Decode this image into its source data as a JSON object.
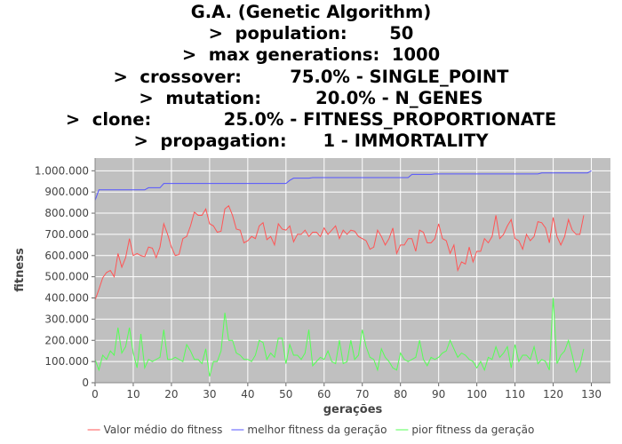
{
  "header": {
    "title_lines": [
      "G.A. (Genetic Algorithm)",
      ">  population:       50",
      ">  max generations:  1000",
      ">  crossover:        75.0% - SINGLE_POINT",
      ">  mutation:         20.0% - N_GENES",
      ">  clone:            25.0% - FITNESS_PROPORTIONATE",
      ">  propagation:      1 - IMMORTALITY"
    ]
  },
  "chart_data": {
    "type": "line",
    "xlabel": "gerações",
    "ylabel": "fitness",
    "xlim": [
      0,
      135
    ],
    "ylim": [
      0,
      1060000
    ],
    "x_ticks": [
      0,
      10,
      20,
      30,
      40,
      50,
      60,
      70,
      80,
      90,
      100,
      110,
      120,
      130
    ],
    "y_ticks": [
      0,
      100000,
      200000,
      300000,
      400000,
      500000,
      600000,
      700000,
      800000,
      900000,
      1000000
    ],
    "y_tick_labels": [
      "0",
      "100.000",
      "200.000",
      "300.000",
      "400.000",
      "500.000",
      "600.000",
      "700.000",
      "800.000",
      "900.000",
      "1.000.000"
    ],
    "grid": true,
    "legend_position": "bottom",
    "background_color": "#c0c0c0",
    "grid_color": "#ffffff",
    "series": [
      {
        "name": "Valor médio do fitness",
        "color": "#ff5555",
        "values": [
          390000,
          440000,
          495000,
          520000,
          530000,
          500000,
          610000,
          545000,
          590000,
          680000,
          600000,
          610000,
          600000,
          595000,
          640000,
          635000,
          590000,
          640000,
          750000,
          700000,
          640000,
          600000,
          605000,
          680000,
          690000,
          740000,
          805000,
          790000,
          790000,
          820000,
          750000,
          740000,
          710000,
          715000,
          820000,
          835000,
          790000,
          725000,
          720000,
          660000,
          670000,
          690000,
          680000,
          740000,
          755000,
          675000,
          690000,
          650000,
          750000,
          725000,
          720000,
          740000,
          665000,
          700000,
          700000,
          720000,
          690000,
          710000,
          710000,
          690000,
          730000,
          700000,
          720000,
          740000,
          680000,
          720000,
          700000,
          720000,
          715000,
          690000,
          680000,
          670000,
          630000,
          640000,
          720000,
          690000,
          650000,
          680000,
          730000,
          610000,
          650000,
          650000,
          680000,
          680000,
          620000,
          720000,
          710000,
          660000,
          660000,
          680000,
          750000,
          680000,
          670000,
          610000,
          650000,
          530000,
          570000,
          560000,
          640000,
          570000,
          620000,
          620000,
          680000,
          660000,
          690000,
          790000,
          680000,
          700000,
          740000,
          770000,
          680000,
          670000,
          630000,
          700000,
          670000,
          690000,
          760000,
          755000,
          730000,
          660000,
          780000,
          690000,
          650000,
          690000,
          770000,
          720000,
          700000,
          700000,
          790000
        ]
      },
      {
        "name": "melhor fitness da geração",
        "color": "#5555ff",
        "values": [
          860000,
          910000,
          910000,
          910000,
          910000,
          910000,
          910000,
          910000,
          910000,
          910000,
          910000,
          910000,
          910000,
          910000,
          920000,
          920000,
          920000,
          920000,
          940000,
          940000,
          940000,
          940000,
          940000,
          940000,
          940000,
          940000,
          940000,
          940000,
          940000,
          940000,
          940000,
          940000,
          940000,
          940000,
          940000,
          940000,
          940000,
          940000,
          940000,
          940000,
          940000,
          940000,
          940000,
          940000,
          940000,
          940000,
          940000,
          940000,
          940000,
          940000,
          940000,
          955000,
          965000,
          965000,
          965000,
          965000,
          965000,
          968000,
          968000,
          968000,
          968000,
          968000,
          968000,
          968000,
          968000,
          968000,
          968000,
          968000,
          968000,
          968000,
          968000,
          968000,
          968000,
          968000,
          968000,
          968000,
          968000,
          968000,
          968000,
          968000,
          968000,
          968000,
          968000,
          983000,
          983000,
          983000,
          983000,
          983000,
          983000,
          985000,
          985000,
          985000,
          985000,
          985000,
          985000,
          985000,
          985000,
          985000,
          985000,
          985000,
          985000,
          985000,
          985000,
          985000,
          985000,
          985000,
          985000,
          985000,
          985000,
          985000,
          985000,
          985000,
          985000,
          985000,
          985000,
          985000,
          985000,
          990000,
          990000,
          990000,
          990000,
          990000,
          990000,
          990000,
          990000,
          990000,
          990000,
          990000,
          990000,
          990000,
          1000000
        ]
      },
      {
        "name": "pior fitness da geração",
        "color": "#55ff55",
        "values": [
          110000,
          60000,
          130000,
          110000,
          150000,
          130000,
          260000,
          140000,
          170000,
          260000,
          140000,
          70000,
          230000,
          70000,
          110000,
          100000,
          110000,
          120000,
          250000,
          110000,
          110000,
          120000,
          110000,
          100000,
          180000,
          150000,
          110000,
          110000,
          90000,
          160000,
          30000,
          100000,
          100000,
          150000,
          330000,
          200000,
          200000,
          140000,
          130000,
          110000,
          110000,
          100000,
          130000,
          200000,
          190000,
          110000,
          140000,
          120000,
          210000,
          210000,
          90000,
          180000,
          130000,
          130000,
          110000,
          140000,
          250000,
          80000,
          100000,
          120000,
          110000,
          150000,
          100000,
          90000,
          200000,
          90000,
          100000,
          200000,
          110000,
          130000,
          250000,
          170000,
          120000,
          110000,
          60000,
          160000,
          120000,
          100000,
          70000,
          60000,
          140000,
          110000,
          100000,
          110000,
          120000,
          200000,
          110000,
          80000,
          120000,
          110000,
          120000,
          140000,
          150000,
          200000,
          160000,
          120000,
          140000,
          130000,
          110000,
          100000,
          70000,
          100000,
          60000,
          120000,
          110000,
          170000,
          120000,
          140000,
          170000,
          70000,
          180000,
          100000,
          130000,
          130000,
          110000,
          170000,
          90000,
          110000,
          100000,
          60000,
          400000,
          90000,
          130000,
          150000,
          200000,
          130000,
          50000,
          80000,
          160000
        ]
      }
    ]
  }
}
